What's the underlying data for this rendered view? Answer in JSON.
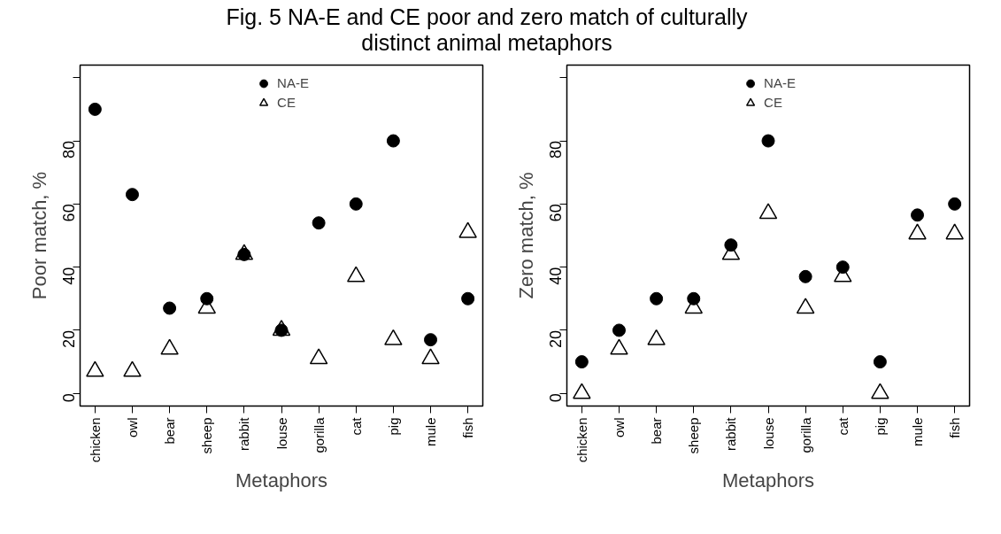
{
  "chart_data": [
    {
      "type": "scatter",
      "title": "Fig. 5 NA-E and CE poor and zero match of culturally distinct animal metaphors",
      "xlabel": "Metaphors",
      "ylabel": "Poor match, %",
      "categories": [
        "chicken",
        "owl",
        "bear",
        "sheep",
        "rabbit",
        "louse",
        "gorilla",
        "cat",
        "pig",
        "mule",
        "fish"
      ],
      "ylim": [
        -4,
        104
      ],
      "yticks": [
        0,
        20,
        40,
        60,
        80,
        {
          "value": 100,
          "label": null
        }
      ],
      "legend": "top",
      "series": [
        {
          "name": "NA-E",
          "color": "#000000",
          "marker": "circle",
          "values": [
            90,
            63,
            27,
            30,
            44,
            20,
            54,
            60,
            80,
            17,
            30
          ]
        },
        {
          "name": "CE",
          "color": "#000000",
          "marker": "triangle",
          "values": [
            7,
            7,
            14,
            27,
            44,
            20,
            11,
            37,
            17,
            11,
            51
          ]
        }
      ]
    },
    {
      "type": "scatter",
      "xlabel": "Metaphors",
      "ylabel": "Zero match, %",
      "categories": [
        "chicken",
        "owl",
        "bear",
        "sheep",
        "rabbit",
        "louse",
        "gorilla",
        "cat",
        "pig",
        "mule",
        "fish"
      ],
      "ylim": [
        -4,
        104
      ],
      "yticks": [
        0,
        20,
        40,
        60,
        80,
        {
          "value": 100,
          "label": null
        }
      ],
      "legend": "top",
      "series": [
        {
          "name": "NA-E",
          "color": "#000000",
          "marker": "circle",
          "values": [
            10,
            20,
            30,
            30,
            47,
            80,
            37,
            40,
            10,
            56.5,
            60
          ]
        },
        {
          "name": "CE",
          "color": "#000000",
          "marker": "triangle",
          "values": [
            0,
            14,
            17,
            27,
            44,
            57,
            27,
            37,
            0,
            50.5,
            50.5
          ]
        }
      ]
    }
  ]
}
